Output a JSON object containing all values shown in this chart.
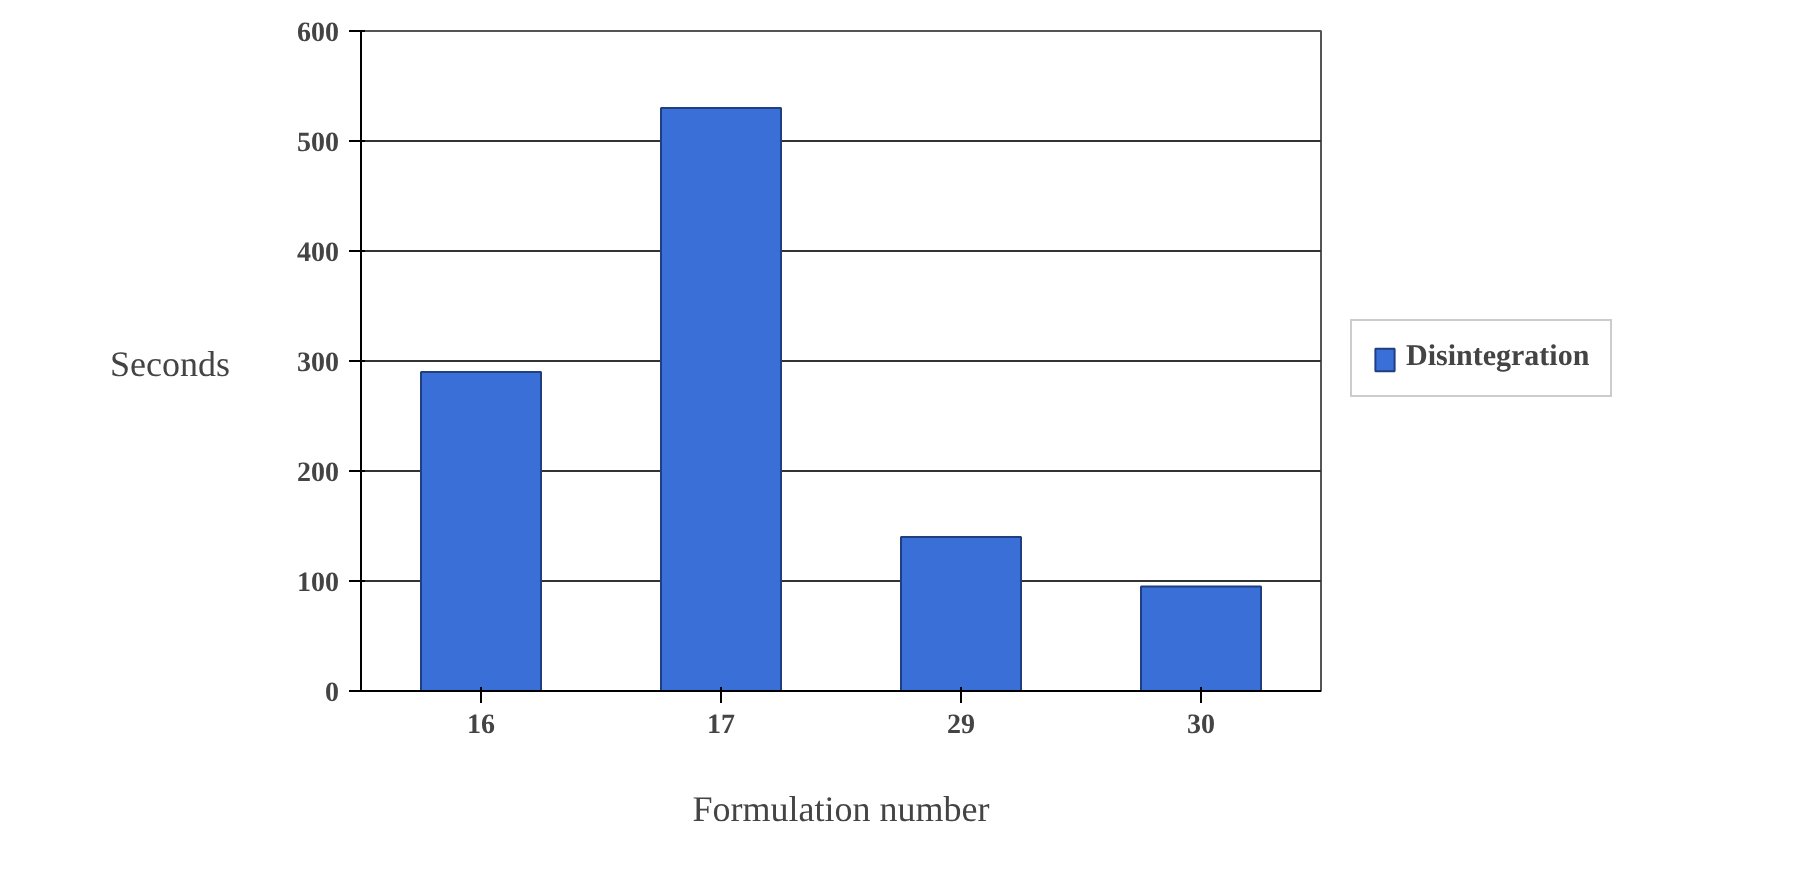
{
  "chart_data": {
    "type": "bar",
    "xlabel": "Formulation number",
    "ylabel": "Seconds",
    "categories": [
      "16",
      "17",
      "29",
      "30"
    ],
    "series": [
      {
        "name": "Disintegration",
        "color": "#3a6fd8",
        "values": [
          290,
          530,
          140,
          95
        ]
      }
    ],
    "ylim": [
      0,
      600
    ],
    "yticks": [
      0,
      100,
      200,
      300,
      400,
      500,
      600
    ],
    "grid": "y",
    "legend": "right"
  }
}
